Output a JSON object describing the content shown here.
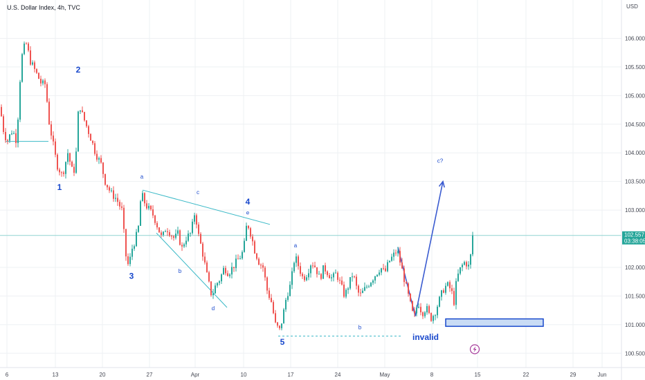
{
  "header": {
    "title": "U.S. Dollar Index, 4h, TVC"
  },
  "chart_data": {
    "type": "candlestick",
    "title": "U.S. Dollar Index, 4h, TVC",
    "currency": "USD",
    "ylim": [
      100.25,
      106.5
    ],
    "y_ticks": [
      "106.000",
      "105.500",
      "105.000",
      "104.500",
      "104.000",
      "103.500",
      "103.000",
      "102.000",
      "101.500",
      "101.000",
      "100.500"
    ],
    "x_ticks": [
      "6",
      "13",
      "20",
      "27",
      "Apr",
      "10",
      "17",
      "24",
      "May",
      "8",
      "15",
      "22",
      "29",
      "Jun"
    ],
    "current_price": "102.557",
    "countdown": "03:38:05",
    "path": [
      [
        0,
        104.8
      ],
      [
        5,
        104.4
      ],
      [
        10,
        104.2
      ],
      [
        18,
        104.4
      ],
      [
        24,
        104.2
      ],
      [
        30,
        105.5
      ],
      [
        33,
        105.8
      ],
      [
        38,
        105.9
      ],
      [
        44,
        105.6
      ],
      [
        52,
        105.4
      ],
      [
        60,
        105.2
      ],
      [
        66,
        105.2
      ],
      [
        70,
        104.6
      ],
      [
        76,
        104.2
      ],
      [
        82,
        103.8
      ],
      [
        90,
        103.6
      ],
      [
        98,
        104.0
      ],
      [
        106,
        103.6
      ],
      [
        110,
        104.0
      ],
      [
        114,
        104.9
      ],
      [
        118,
        104.7
      ],
      [
        124,
        104.5
      ],
      [
        130,
        104.3
      ],
      [
        138,
        104.0
      ],
      [
        146,
        103.8
      ],
      [
        152,
        103.5
      ],
      [
        160,
        103.3
      ],
      [
        168,
        103.2
      ],
      [
        176,
        103.0
      ],
      [
        182,
        102.2
      ],
      [
        186,
        102.0
      ],
      [
        190,
        102.3
      ],
      [
        196,
        102.5
      ],
      [
        200,
        102.7
      ],
      [
        204,
        103.3
      ],
      [
        210,
        103.1
      ],
      [
        216,
        103.0
      ],
      [
        222,
        102.9
      ],
      [
        228,
        102.7
      ],
      [
        234,
        102.5
      ],
      [
        240,
        102.7
      ],
      [
        246,
        102.6
      ],
      [
        252,
        102.5
      ],
      [
        258,
        102.6
      ],
      [
        262,
        102.3
      ],
      [
        268,
        102.5
      ],
      [
        276,
        102.6
      ],
      [
        282,
        103.0
      ],
      [
        286,
        102.6
      ],
      [
        292,
        102.3
      ],
      [
        300,
        101.8
      ],
      [
        306,
        101.5
      ],
      [
        312,
        101.7
      ],
      [
        318,
        101.8
      ],
      [
        324,
        102.0
      ],
      [
        330,
        101.9
      ],
      [
        336,
        102.0
      ],
      [
        342,
        102.1
      ],
      [
        348,
        102.2
      ],
      [
        352,
        102.3
      ],
      [
        357,
        102.8
      ],
      [
        362,
        102.6
      ],
      [
        368,
        102.3
      ],
      [
        374,
        102.1
      ],
      [
        380,
        102.0
      ],
      [
        386,
        101.6
      ],
      [
        392,
        101.4
      ],
      [
        398,
        101.0
      ],
      [
        404,
        100.9
      ],
      [
        408,
        101.1
      ],
      [
        414,
        101.5
      ],
      [
        420,
        101.7
      ],
      [
        426,
        102.2
      ],
      [
        432,
        102.0
      ],
      [
        438,
        101.8
      ],
      [
        444,
        101.9
      ],
      [
        450,
        102.1
      ],
      [
        456,
        102.0
      ],
      [
        462,
        101.8
      ],
      [
        468,
        102.0
      ],
      [
        474,
        101.9
      ],
      [
        480,
        101.8
      ],
      [
        486,
        101.9
      ],
      [
        492,
        101.7
      ],
      [
        498,
        101.5
      ],
      [
        504,
        101.7
      ],
      [
        510,
        101.9
      ],
      [
        516,
        101.6
      ],
      [
        520,
        101.5
      ],
      [
        526,
        101.6
      ],
      [
        532,
        101.7
      ],
      [
        538,
        101.8
      ],
      [
        544,
        101.9
      ],
      [
        550,
        102.0
      ],
      [
        556,
        101.9
      ],
      [
        562,
        102.1
      ],
      [
        568,
        102.2
      ],
      [
        574,
        102.3
      ],
      [
        580,
        102.0
      ],
      [
        586,
        101.7
      ],
      [
        592,
        101.4
      ],
      [
        598,
        101.1
      ],
      [
        604,
        101.4
      ],
      [
        610,
        101.2
      ],
      [
        616,
        101.3
      ],
      [
        622,
        101.1
      ],
      [
        628,
        101.2
      ],
      [
        634,
        101.4
      ],
      [
        640,
        101.6
      ],
      [
        646,
        101.7
      ],
      [
        652,
        101.6
      ],
      [
        656,
        101.4
      ],
      [
        660,
        101.8
      ],
      [
        666,
        102.0
      ],
      [
        672,
        102.1
      ],
      [
        678,
        102.0
      ],
      [
        682,
        102.4
      ],
      [
        685,
        102.557
      ]
    ],
    "annotations": [
      {
        "type": "hline",
        "y": 104.2,
        "x_from": 8,
        "x_to": 70,
        "color": "#38b8c6"
      },
      {
        "type": "line",
        "from": [
          206,
          103.35
        ],
        "to": [
          390,
          102.75
        ],
        "color": "#38b8c6"
      },
      {
        "type": "line",
        "from": [
          226,
          102.6
        ],
        "to": [
          328,
          101.3
        ],
        "color": "#38b8c6"
      },
      {
        "type": "dashed_hline",
        "y": 100.8,
        "x_from": 402,
        "x_to": 582,
        "color": "#38b8c6"
      },
      {
        "type": "hline",
        "y": 102.557,
        "x_from": 0,
        "x_to": 898,
        "color": "#8fd3d1"
      },
      {
        "type": "arrow",
        "points": [
          [
            575,
            102.35
          ],
          [
            600,
            101.15
          ],
          [
            640,
            103.5
          ]
        ],
        "color": "#3a5bd0"
      },
      {
        "type": "rect",
        "from": [
          644,
          101.1
        ],
        "to": [
          785,
          100.97
        ],
        "color": "#c9dcf5",
        "stroke": "#1848cc"
      },
      {
        "type": "icon",
        "at": [
          686,
          100.57
        ],
        "name": "lightning-icon",
        "color": "#a53b9a"
      }
    ],
    "labels": [
      {
        "text": "1",
        "at": [
          86,
          103.35
        ],
        "class": "wave"
      },
      {
        "text": "2",
        "at": [
          113,
          105.4
        ],
        "class": "wave"
      },
      {
        "text": "3",
        "at": [
          190,
          101.8
        ],
        "class": "wave"
      },
      {
        "text": "4",
        "at": [
          358,
          103.1
        ],
        "class": "wave"
      },
      {
        "text": "5",
        "at": [
          408,
          100.65
        ],
        "class": "wave"
      },
      {
        "text": "a",
        "at": [
          205,
          103.55
        ],
        "class": "wave-sub"
      },
      {
        "text": "b",
        "at": [
          260,
          101.9
        ],
        "class": "wave-sub"
      },
      {
        "text": "c",
        "at": [
          286,
          103.28
        ],
        "class": "wave-sub"
      },
      {
        "text": "d",
        "at": [
          308,
          101.25
        ],
        "class": "wave-sub"
      },
      {
        "text": "e",
        "at": [
          358,
          102.92
        ],
        "class": "wave-sub"
      },
      {
        "text": "a",
        "at": [
          427,
          102.35
        ],
        "class": "wave-sub"
      },
      {
        "text": "b",
        "at": [
          520,
          100.92
        ],
        "class": "wave-sub"
      },
      {
        "text": "c?",
        "at": [
          636,
          103.83
        ],
        "class": "wave-sub"
      },
      {
        "text": "invalid",
        "at": [
          615,
          100.73
        ],
        "class": "invalid"
      }
    ]
  }
}
